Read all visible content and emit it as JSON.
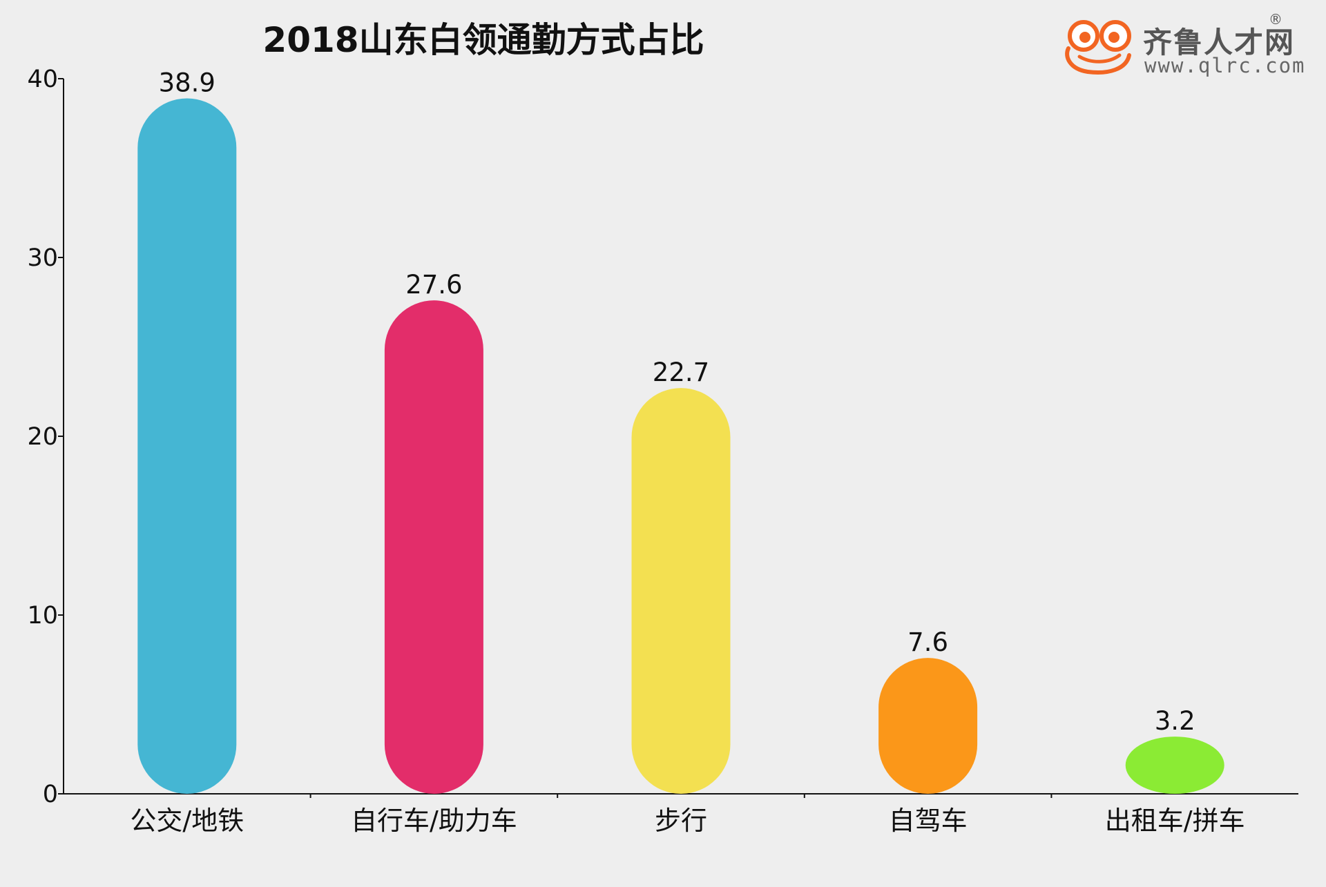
{
  "chart_data": {
    "type": "bar",
    "title": "2018山东白领通勤方式占比",
    "categories": [
      "公交/地铁",
      "自行车/助力车",
      "步行",
      "自驾车",
      "出租车/拼车"
    ],
    "values": [
      38.9,
      27.6,
      22.7,
      7.6,
      3.2
    ],
    "colors": [
      "#45b6d3",
      "#e32d6a",
      "#f3e051",
      "#fb9719",
      "#8beb34"
    ],
    "ylim": [
      0,
      40
    ],
    "yticks": [
      0,
      10,
      20,
      30,
      40
    ],
    "xlabel": "",
    "ylabel": "",
    "grid": false,
    "legend": "none"
  },
  "logo": {
    "name": "齐鲁人才网",
    "registered_mark": "®",
    "url": "www.qlrc.com",
    "brand_color": "#f26522"
  }
}
